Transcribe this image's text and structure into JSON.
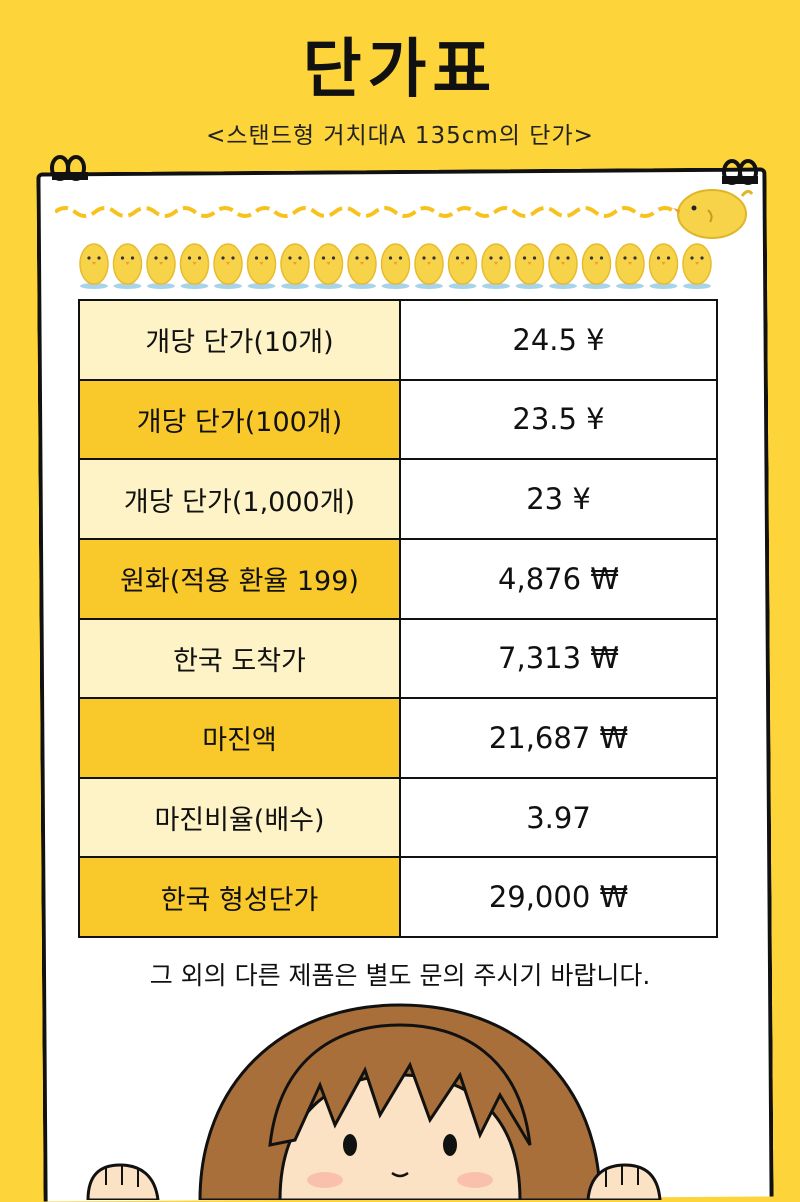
{
  "header": {
    "title": "단가표",
    "subtitle": "<스탠드형 거치대A 135cm의 단가>"
  },
  "table": {
    "rows": [
      {
        "label": "개당 단가(10개)",
        "value": "24.5 ¥",
        "shade": "light"
      },
      {
        "label": "개당 단가(100개)",
        "value": "23.5 ¥",
        "shade": "dark"
      },
      {
        "label": "개당 단가(1,000개)",
        "value": "23 ¥",
        "shade": "light"
      },
      {
        "label": "원화(적용 환율 199)",
        "value": "4,876 ₩",
        "shade": "dark"
      },
      {
        "label": "한국 도착가",
        "value": "7,313 ₩",
        "shade": "light"
      },
      {
        "label": "마진액",
        "value": "21,687 ₩",
        "shade": "dark"
      },
      {
        "label": "마진비율(배수)",
        "value": "3.97",
        "shade": "light"
      },
      {
        "label": "한국 형성단가",
        "value": "29,000 ₩",
        "shade": "dark"
      }
    ]
  },
  "footer": {
    "note": "그 외의 다른 제품은 별도 문의 주시기 바랍니다."
  },
  "colors": {
    "background": "#FDD53A",
    "label_light": "#FEF3C6",
    "label_dark": "#F9C92C"
  },
  "decorations": [
    "binder-clip-icon",
    "chick-icon",
    "wavy-line",
    "girl-peeking-illustration"
  ]
}
